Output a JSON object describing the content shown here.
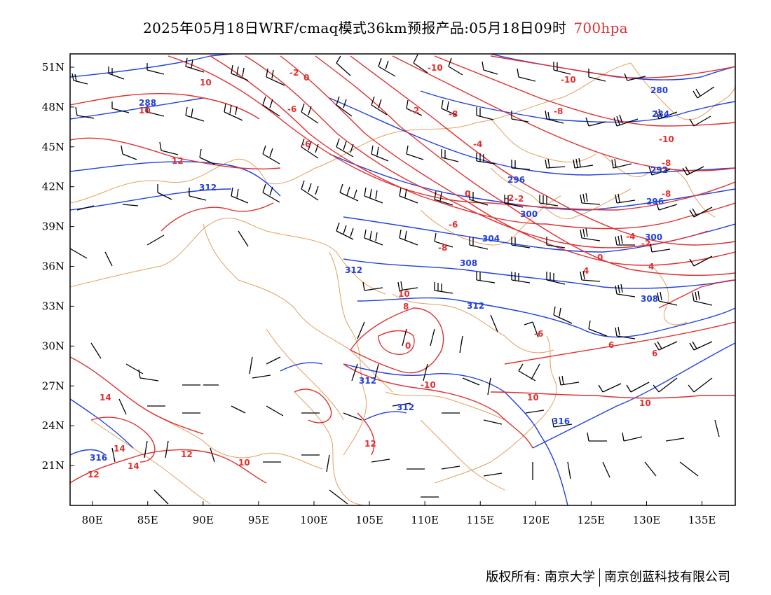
{
  "title": {
    "main": "2025年05月18日WRF/cmaq模式36km预报产品:05月18日09时",
    "level": "700hpa",
    "level_color": "#e03030"
  },
  "axes": {
    "lon_labels": [
      "80E",
      "85E",
      "90E",
      "95E",
      "100E",
      "105E",
      "110E",
      "115E",
      "120E",
      "125E",
      "130E",
      "135E"
    ],
    "lon_values": [
      80,
      85,
      90,
      95,
      100,
      105,
      110,
      115,
      120,
      125,
      130,
      135
    ],
    "lat_labels": [
      "51N",
      "48N",
      "45N",
      "42N",
      "39N",
      "36N",
      "33N",
      "30N",
      "27N",
      "24N",
      "21N"
    ],
    "lat_values": [
      51,
      48,
      45,
      42,
      39,
      36,
      33,
      30,
      27,
      24,
      21
    ],
    "lon_range": [
      78,
      138
    ],
    "lat_range": [
      18,
      52
    ]
  },
  "fields": {
    "temperature_color": "#e03030",
    "geopotential_color": "#2040e0",
    "boundary_color": "#e0a060",
    "wind_barb_color": "#000000",
    "temperature_labels": [
      "0",
      "-2",
      "-10",
      "-10",
      "10",
      "10",
      "-6",
      "-2",
      "-8",
      "-8",
      "-6",
      "-4",
      "-10",
      "-2",
      "12",
      "0",
      "-2",
      "-8",
      "-6",
      "-8",
      "-4",
      "0",
      "-2",
      "4",
      "4",
      "10",
      "8",
      "0",
      "-6",
      "10",
      "-10",
      "10",
      "14",
      "14",
      "12",
      "12",
      "14",
      "12",
      "10",
      "6",
      "-8",
      "6"
    ],
    "geopotential_labels": [
      "280",
      "284",
      "288",
      "292",
      "296",
      "296",
      "300",
      "304",
      "308",
      "312",
      "312",
      "312",
      "312",
      "312",
      "316",
      "316",
      "300",
      "308"
    ]
  },
  "copyright": {
    "left": "版权所有: 南京大学",
    "right": "南京创蓝科技有限公司"
  }
}
